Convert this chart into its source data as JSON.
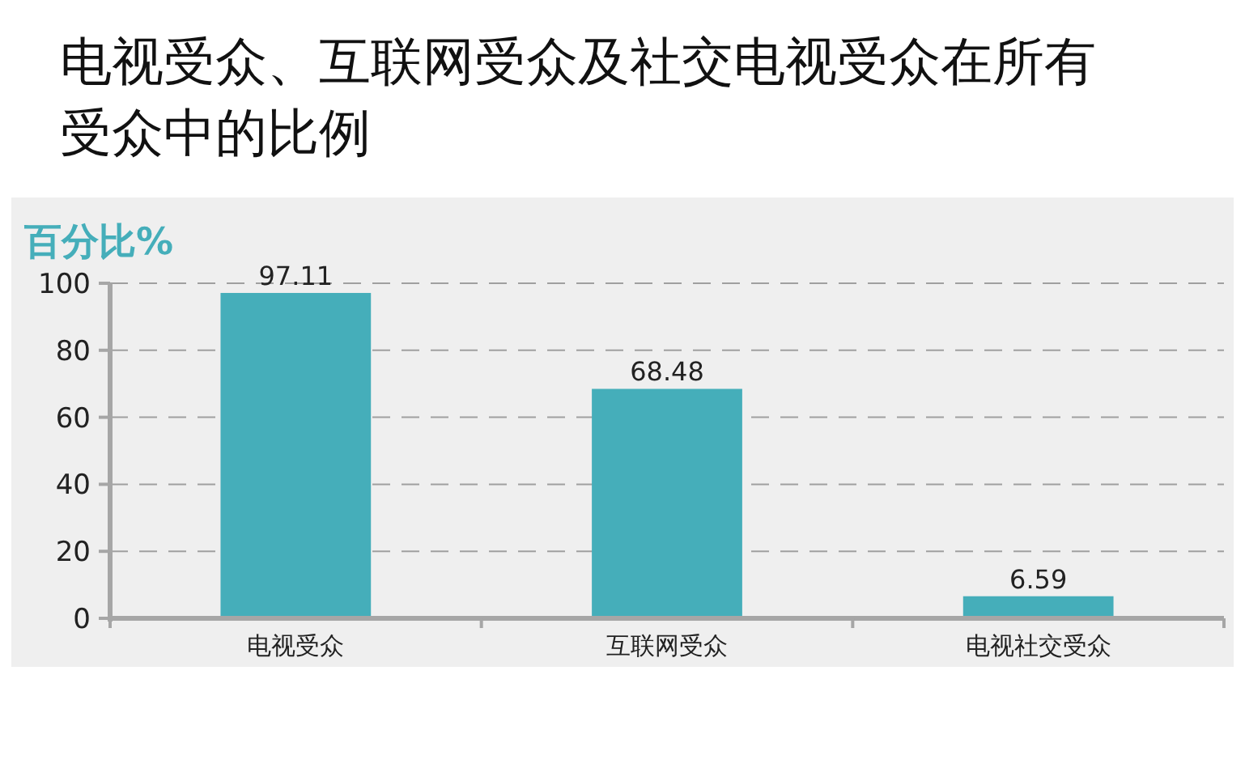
{
  "chart_data": {
    "type": "bar",
    "title": "电视受众、互联网受众及社交电视受众在所有受众中的比例",
    "ylabel": "百分比%",
    "categories": [
      "电视受众",
      "互联网受众",
      "电视社交受众"
    ],
    "values": [
      97.11,
      68.48,
      6.59
    ],
    "color": "#45aeba",
    "ylim": [
      0,
      100
    ],
    "yticks": [
      0,
      20,
      40,
      60,
      80,
      100
    ],
    "grid": "y",
    "data_labels": true
  }
}
